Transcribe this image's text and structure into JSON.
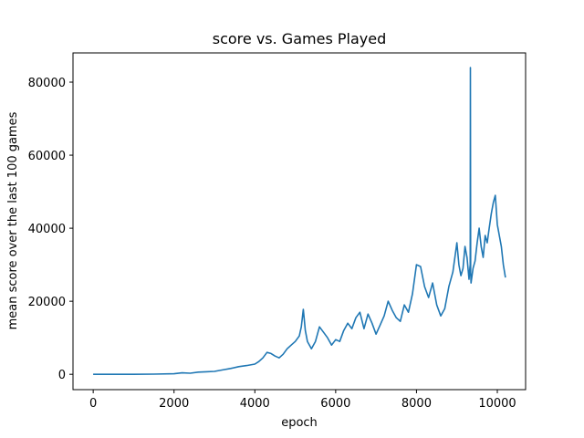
{
  "chart_data": {
    "type": "line",
    "title": "score vs. Games Played",
    "xlabel": "epoch",
    "ylabel": "mean score over the last 100 games",
    "xlim": [
      -500,
      10700
    ],
    "ylim": [
      -4200,
      88000
    ],
    "xticks": [
      0,
      2000,
      4000,
      6000,
      8000,
      10000
    ],
    "yticks": [
      0,
      20000,
      40000,
      60000,
      80000
    ],
    "grid": false,
    "series": [
      {
        "color": "#1f77b4",
        "x": [
          0,
          500,
          1000,
          1500,
          2000,
          2200,
          2400,
          2600,
          2800,
          3000,
          3200,
          3400,
          3600,
          3800,
          4000,
          4100,
          4200,
          4300,
          4400,
          4500,
          4600,
          4700,
          4800,
          4900,
          5000,
          5100,
          5150,
          5200,
          5250,
          5300,
          5400,
          5500,
          5600,
          5700,
          5800,
          5900,
          6000,
          6100,
          6200,
          6300,
          6400,
          6500,
          6600,
          6700,
          6800,
          6900,
          7000,
          7100,
          7200,
          7300,
          7400,
          7500,
          7600,
          7700,
          7800,
          7900,
          8000,
          8100,
          8200,
          8300,
          8400,
          8500,
          8600,
          8700,
          8800,
          8900,
          9000,
          9050,
          9100,
          9150,
          9200,
          9250,
          9300,
          9320,
          9330,
          9335,
          9340,
          9350,
          9400,
          9450,
          9500,
          9550,
          9600,
          9650,
          9700,
          9750,
          9800,
          9850,
          9900,
          9950,
          10000,
          10050,
          10100,
          10150,
          10200
        ],
        "values": [
          0,
          0,
          0,
          50,
          150,
          400,
          300,
          600,
          700,
          800,
          1200,
          1600,
          2100,
          2400,
          2800,
          3500,
          4500,
          6000,
          5700,
          5000,
          4500,
          5500,
          7000,
          8000,
          9000,
          10500,
          13000,
          17800,
          12000,
          9000,
          7000,
          9000,
          13000,
          11500,
          10000,
          8000,
          9500,
          9000,
          12000,
          14000,
          12500,
          15500,
          17000,
          12500,
          16500,
          14000,
          11000,
          13500,
          16000,
          20000,
          17500,
          15500,
          14500,
          19000,
          17000,
          22000,
          30000,
          29500,
          24000,
          21000,
          25000,
          19000,
          16000,
          18000,
          24000,
          28000,
          36000,
          30000,
          27000,
          29000,
          35000,
          32000,
          26000,
          29000,
          30000,
          84000,
          28000,
          25000,
          29000,
          31000,
          36000,
          40000,
          35000,
          32000,
          38000,
          36000,
          40000,
          44000,
          47000,
          49000,
          41000,
          38000,
          35000,
          30000,
          26500
        ]
      }
    ]
  }
}
